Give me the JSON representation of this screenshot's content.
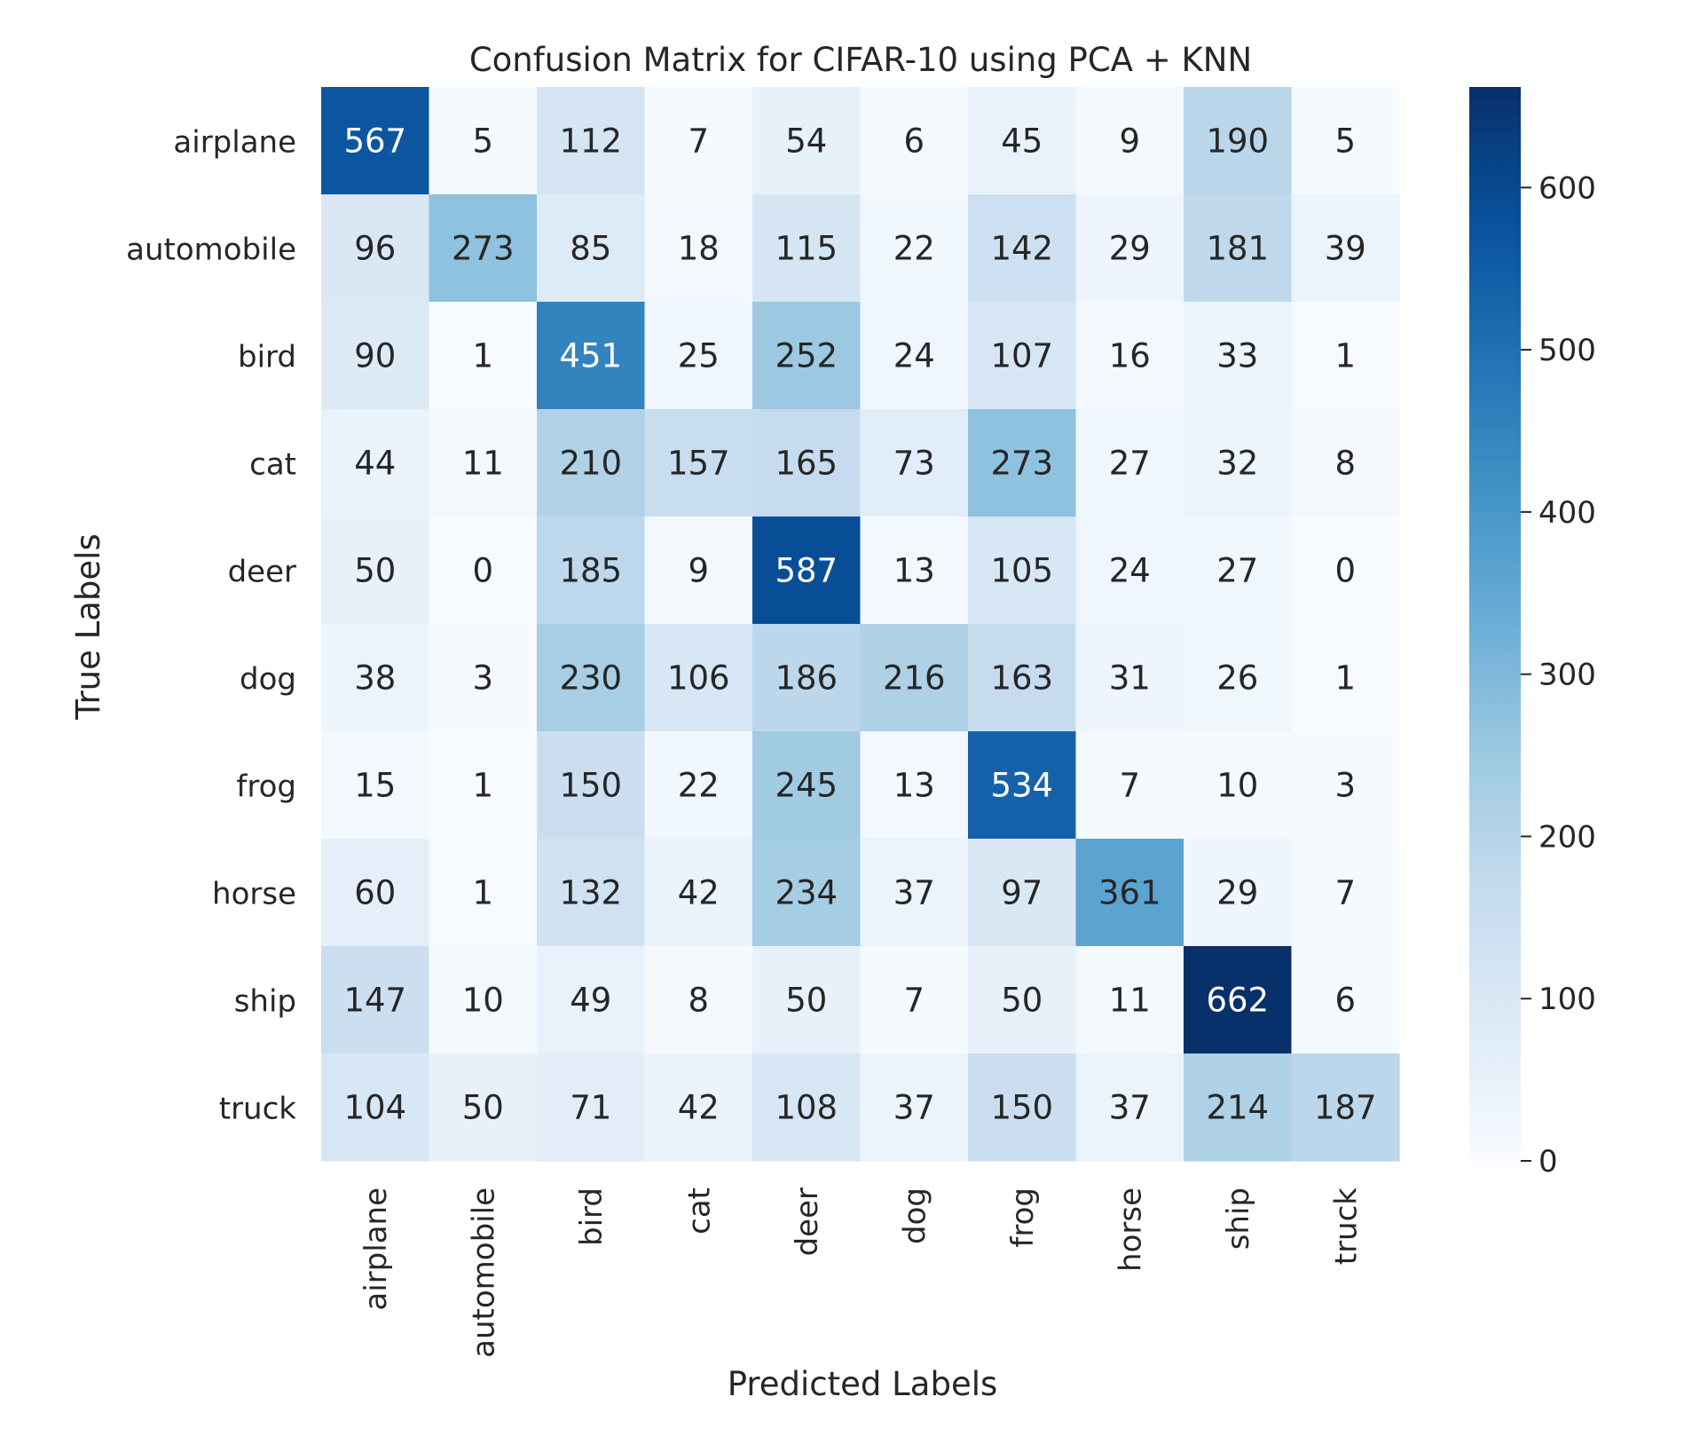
{
  "chart_data": {
    "type": "heatmap",
    "title": "Confusion Matrix for CIFAR-10 using PCA + KNN",
    "xlabel": "Predicted Labels",
    "ylabel": "True Labels",
    "x_categories": [
      "airplane",
      "automobile",
      "bird",
      "cat",
      "deer",
      "dog",
      "frog",
      "horse",
      "ship",
      "truck"
    ],
    "y_categories": [
      "airplane",
      "automobile",
      "bird",
      "cat",
      "deer",
      "dog",
      "frog",
      "horse",
      "ship",
      "truck"
    ],
    "values": [
      [
        567,
        5,
        112,
        7,
        54,
        6,
        45,
        9,
        190,
        5
      ],
      [
        96,
        273,
        85,
        18,
        115,
        22,
        142,
        29,
        181,
        39
      ],
      [
        90,
        1,
        451,
        25,
        252,
        24,
        107,
        16,
        33,
        1
      ],
      [
        44,
        11,
        210,
        157,
        165,
        73,
        273,
        27,
        32,
        8
      ],
      [
        50,
        0,
        185,
        9,
        587,
        13,
        105,
        24,
        27,
        0
      ],
      [
        38,
        3,
        230,
        106,
        186,
        216,
        163,
        31,
        26,
        1
      ],
      [
        15,
        1,
        150,
        22,
        245,
        13,
        534,
        7,
        10,
        3
      ],
      [
        60,
        1,
        132,
        42,
        234,
        37,
        97,
        361,
        29,
        7
      ],
      [
        147,
        10,
        49,
        8,
        50,
        7,
        50,
        11,
        662,
        6
      ],
      [
        104,
        50,
        71,
        42,
        108,
        37,
        150,
        37,
        214,
        187
      ]
    ],
    "colormap": "Blues",
    "colorbar": {
      "range": [
        0,
        662
      ],
      "ticks": [
        0,
        100,
        200,
        300,
        400,
        500,
        600
      ],
      "tick_labels": [
        "0",
        "100",
        "200",
        "300",
        "400",
        "500",
        "600"
      ]
    },
    "grid": false,
    "legend": "colorbar right"
  }
}
